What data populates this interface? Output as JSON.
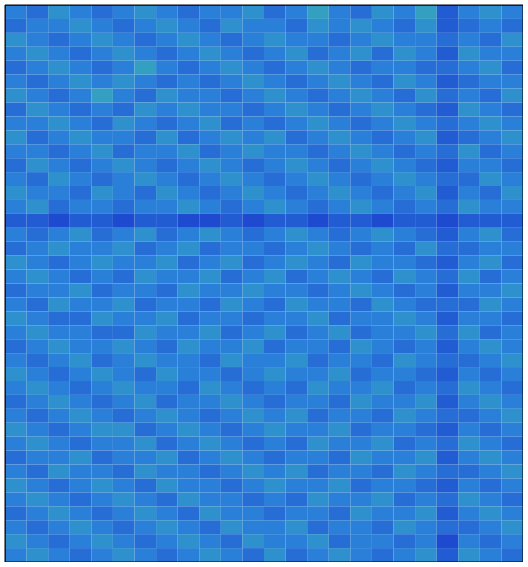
{
  "chart_data": {
    "type": "heatmap",
    "xlim": [
      0,
      12
    ],
    "ylim": [
      0,
      6
    ],
    "xticks": [
      1,
      2,
      3,
      4,
      5,
      6,
      7,
      8,
      9,
      10,
      11
    ],
    "yticks": [
      1,
      2,
      3,
      4,
      5
    ],
    "tick_labels": false,
    "color_range": [
      0,
      10
    ],
    "cells": [
      [
        5,
        4,
        6,
        5,
        4,
        5,
        6,
        5,
        4,
        5,
        5,
        6,
        4,
        5,
        7,
        5,
        4,
        6,
        5,
        7,
        3,
        5,
        6,
        5
      ],
      [
        4,
        5,
        5,
        6,
        5,
        4,
        5,
        6,
        5,
        4,
        6,
        5,
        5,
        4,
        6,
        5,
        6,
        5,
        4,
        6,
        3,
        4,
        5,
        4
      ],
      [
        6,
        5,
        4,
        5,
        6,
        5,
        4,
        5,
        6,
        5,
        4,
        5,
        6,
        5,
        5,
        4,
        5,
        6,
        5,
        5,
        4,
        5,
        4,
        6
      ],
      [
        5,
        6,
        5,
        4,
        5,
        6,
        5,
        4,
        5,
        6,
        5,
        4,
        5,
        6,
        4,
        5,
        6,
        4,
        6,
        5,
        3,
        6,
        5,
        5
      ],
      [
        4,
        5,
        6,
        5,
        4,
        5,
        7,
        5,
        4,
        5,
        6,
        5,
        4,
        5,
        6,
        5,
        4,
        5,
        5,
        4,
        4,
        5,
        6,
        4
      ],
      [
        5,
        4,
        5,
        6,
        5,
        6,
        5,
        4,
        5,
        4,
        5,
        6,
        5,
        4,
        5,
        6,
        5,
        4,
        6,
        5,
        3,
        4,
        5,
        5
      ],
      [
        6,
        5,
        4,
        5,
        7,
        5,
        4,
        6,
        5,
        5,
        4,
        5,
        6,
        5,
        4,
        5,
        6,
        5,
        4,
        6,
        4,
        5,
        4,
        6
      ],
      [
        4,
        6,
        5,
        4,
        5,
        4,
        6,
        5,
        6,
        5,
        5,
        4,
        5,
        6,
        5,
        4,
        5,
        6,
        5,
        4,
        3,
        6,
        5,
        4
      ],
      [
        5,
        5,
        6,
        5,
        4,
        6,
        5,
        4,
        5,
        6,
        4,
        5,
        4,
        5,
        6,
        5,
        4,
        5,
        6,
        5,
        4,
        5,
        6,
        5
      ],
      [
        6,
        4,
        5,
        6,
        5,
        5,
        4,
        6,
        4,
        5,
        6,
        5,
        6,
        4,
        5,
        6,
        5,
        4,
        5,
        6,
        3,
        4,
        5,
        6
      ],
      [
        5,
        5,
        4,
        5,
        6,
        4,
        5,
        5,
        6,
        4,
        5,
        6,
        5,
        5,
        4,
        5,
        6,
        5,
        4,
        5,
        4,
        6,
        4,
        5
      ],
      [
        4,
        6,
        5,
        4,
        5,
        6,
        5,
        4,
        5,
        6,
        5,
        4,
        5,
        6,
        5,
        4,
        5,
        6,
        5,
        4,
        3,
        5,
        5,
        4
      ],
      [
        5,
        4,
        6,
        5,
        4,
        5,
        6,
        5,
        4,
        5,
        6,
        5,
        4,
        5,
        6,
        5,
        4,
        5,
        6,
        5,
        4,
        4,
        6,
        5
      ],
      [
        6,
        5,
        5,
        4,
        6,
        5,
        4,
        6,
        5,
        4,
        5,
        6,
        5,
        4,
        5,
        6,
        5,
        4,
        5,
        6,
        3,
        5,
        4,
        6
      ],
      [
        5,
        6,
        4,
        5,
        5,
        4,
        5,
        5,
        6,
        5,
        4,
        5,
        6,
        5,
        4,
        5,
        6,
        5,
        4,
        5,
        4,
        6,
        5,
        5
      ],
      [
        3,
        3,
        2,
        3,
        3,
        2,
        3,
        3,
        2,
        2,
        3,
        2,
        3,
        3,
        2,
        3,
        3,
        2,
        3,
        3,
        2,
        3,
        3,
        3
      ],
      [
        5,
        4,
        5,
        6,
        4,
        5,
        6,
        4,
        5,
        6,
        5,
        4,
        5,
        6,
        5,
        4,
        5,
        6,
        5,
        4,
        3,
        5,
        6,
        4
      ],
      [
        4,
        5,
        6,
        5,
        5,
        6,
        4,
        5,
        6,
        4,
        5,
        5,
        4,
        5,
        6,
        5,
        4,
        5,
        4,
        6,
        4,
        4,
        5,
        5
      ],
      [
        6,
        5,
        4,
        5,
        6,
        5,
        5,
        6,
        4,
        5,
        6,
        4,
        5,
        6,
        5,
        4,
        6,
        5,
        5,
        4,
        3,
        5,
        6,
        4
      ],
      [
        5,
        6,
        5,
        4,
        5,
        4,
        6,
        5,
        5,
        6,
        4,
        5,
        6,
        4,
        5,
        6,
        5,
        4,
        6,
        5,
        4,
        6,
        4,
        5
      ],
      [
        4,
        5,
        5,
        6,
        4,
        5,
        5,
        4,
        6,
        5,
        5,
        6,
        5,
        5,
        4,
        5,
        6,
        5,
        4,
        5,
        3,
        5,
        5,
        6
      ],
      [
        5,
        4,
        6,
        5,
        5,
        6,
        4,
        5,
        5,
        4,
        6,
        5,
        4,
        6,
        5,
        5,
        4,
        6,
        5,
        4,
        4,
        4,
        6,
        5
      ],
      [
        6,
        5,
        4,
        4,
        6,
        5,
        5,
        6,
        4,
        5,
        5,
        4,
        5,
        5,
        6,
        4,
        5,
        5,
        6,
        5,
        3,
        5,
        5,
        4
      ],
      [
        5,
        6,
        5,
        5,
        4,
        4,
        6,
        5,
        5,
        6,
        4,
        5,
        6,
        4,
        5,
        6,
        4,
        5,
        5,
        6,
        4,
        6,
        4,
        5
      ],
      [
        4,
        5,
        6,
        5,
        5,
        6,
        5,
        4,
        6,
        5,
        5,
        6,
        4,
        5,
        5,
        4,
        6,
        5,
        4,
        5,
        3,
        5,
        6,
        5
      ],
      [
        5,
        4,
        5,
        6,
        4,
        5,
        6,
        5,
        5,
        4,
        6,
        5,
        5,
        6,
        4,
        5,
        5,
        4,
        6,
        5,
        4,
        4,
        5,
        6
      ],
      [
        6,
        5,
        4,
        5,
        6,
        5,
        4,
        6,
        5,
        5,
        4,
        5,
        6,
        5,
        5,
        6,
        4,
        5,
        5,
        4,
        3,
        5,
        4,
        5
      ],
      [
        5,
        6,
        5,
        4,
        5,
        6,
        5,
        5,
        4,
        6,
        5,
        4,
        5,
        4,
        6,
        5,
        5,
        6,
        4,
        5,
        4,
        6,
        5,
        4
      ],
      [
        4,
        5,
        6,
        5,
        4,
        5,
        6,
        4,
        5,
        5,
        6,
        5,
        4,
        5,
        5,
        4,
        6,
        5,
        5,
        6,
        3,
        5,
        6,
        5
      ],
      [
        5,
        4,
        5,
        6,
        5,
        4,
        5,
        6,
        5,
        4,
        5,
        6,
        5,
        6,
        4,
        5,
        5,
        4,
        6,
        5,
        4,
        4,
        5,
        6
      ],
      [
        6,
        5,
        4,
        5,
        6,
        6,
        4,
        5,
        6,
        5,
        4,
        5,
        6,
        5,
        5,
        6,
        4,
        5,
        5,
        4,
        3,
        5,
        4,
        5
      ],
      [
        5,
        6,
        5,
        4,
        5,
        5,
        6,
        4,
        5,
        6,
        5,
        4,
        5,
        4,
        6,
        5,
        5,
        6,
        4,
        5,
        4,
        6,
        5,
        4
      ],
      [
        4,
        5,
        5,
        6,
        4,
        5,
        5,
        6,
        4,
        5,
        6,
        5,
        4,
        5,
        5,
        4,
        6,
        5,
        5,
        6,
        3,
        5,
        6,
        5
      ],
      [
        5,
        4,
        6,
        5,
        5,
        4,
        6,
        5,
        5,
        4,
        5,
        6,
        5,
        6,
        4,
        5,
        5,
        4,
        6,
        5,
        4,
        4,
        5,
        6
      ],
      [
        6,
        5,
        4,
        5,
        6,
        5,
        4,
        6,
        5,
        5,
        4,
        5,
        6,
        5,
        5,
        6,
        4,
        5,
        5,
        4,
        3,
        5,
        4,
        5
      ],
      [
        5,
        6,
        5,
        4,
        5,
        6,
        5,
        4,
        6,
        5,
        5,
        4,
        5,
        4,
        6,
        5,
        5,
        6,
        4,
        5,
        4,
        6,
        5,
        4
      ],
      [
        4,
        5,
        6,
        5,
        4,
        5,
        6,
        5,
        4,
        6,
        5,
        5,
        4,
        5,
        5,
        4,
        6,
        5,
        5,
        6,
        3,
        5,
        6,
        5
      ],
      [
        5,
        4,
        5,
        6,
        5,
        4,
        5,
        6,
        5,
        4,
        6,
        5,
        5,
        6,
        4,
        5,
        5,
        4,
        6,
        5,
        4,
        4,
        5,
        6
      ],
      [
        6,
        5,
        4,
        5,
        6,
        5,
        4,
        5,
        6,
        5,
        4,
        6,
        5,
        5,
        6,
        4,
        5,
        5,
        4,
        5,
        2,
        5,
        4,
        5
      ],
      [
        5,
        6,
        5,
        4,
        5,
        6,
        5,
        4,
        5,
        6,
        5,
        4,
        6,
        4,
        5,
        6,
        5,
        4,
        5,
        6,
        3,
        6,
        5,
        4
      ]
    ]
  }
}
